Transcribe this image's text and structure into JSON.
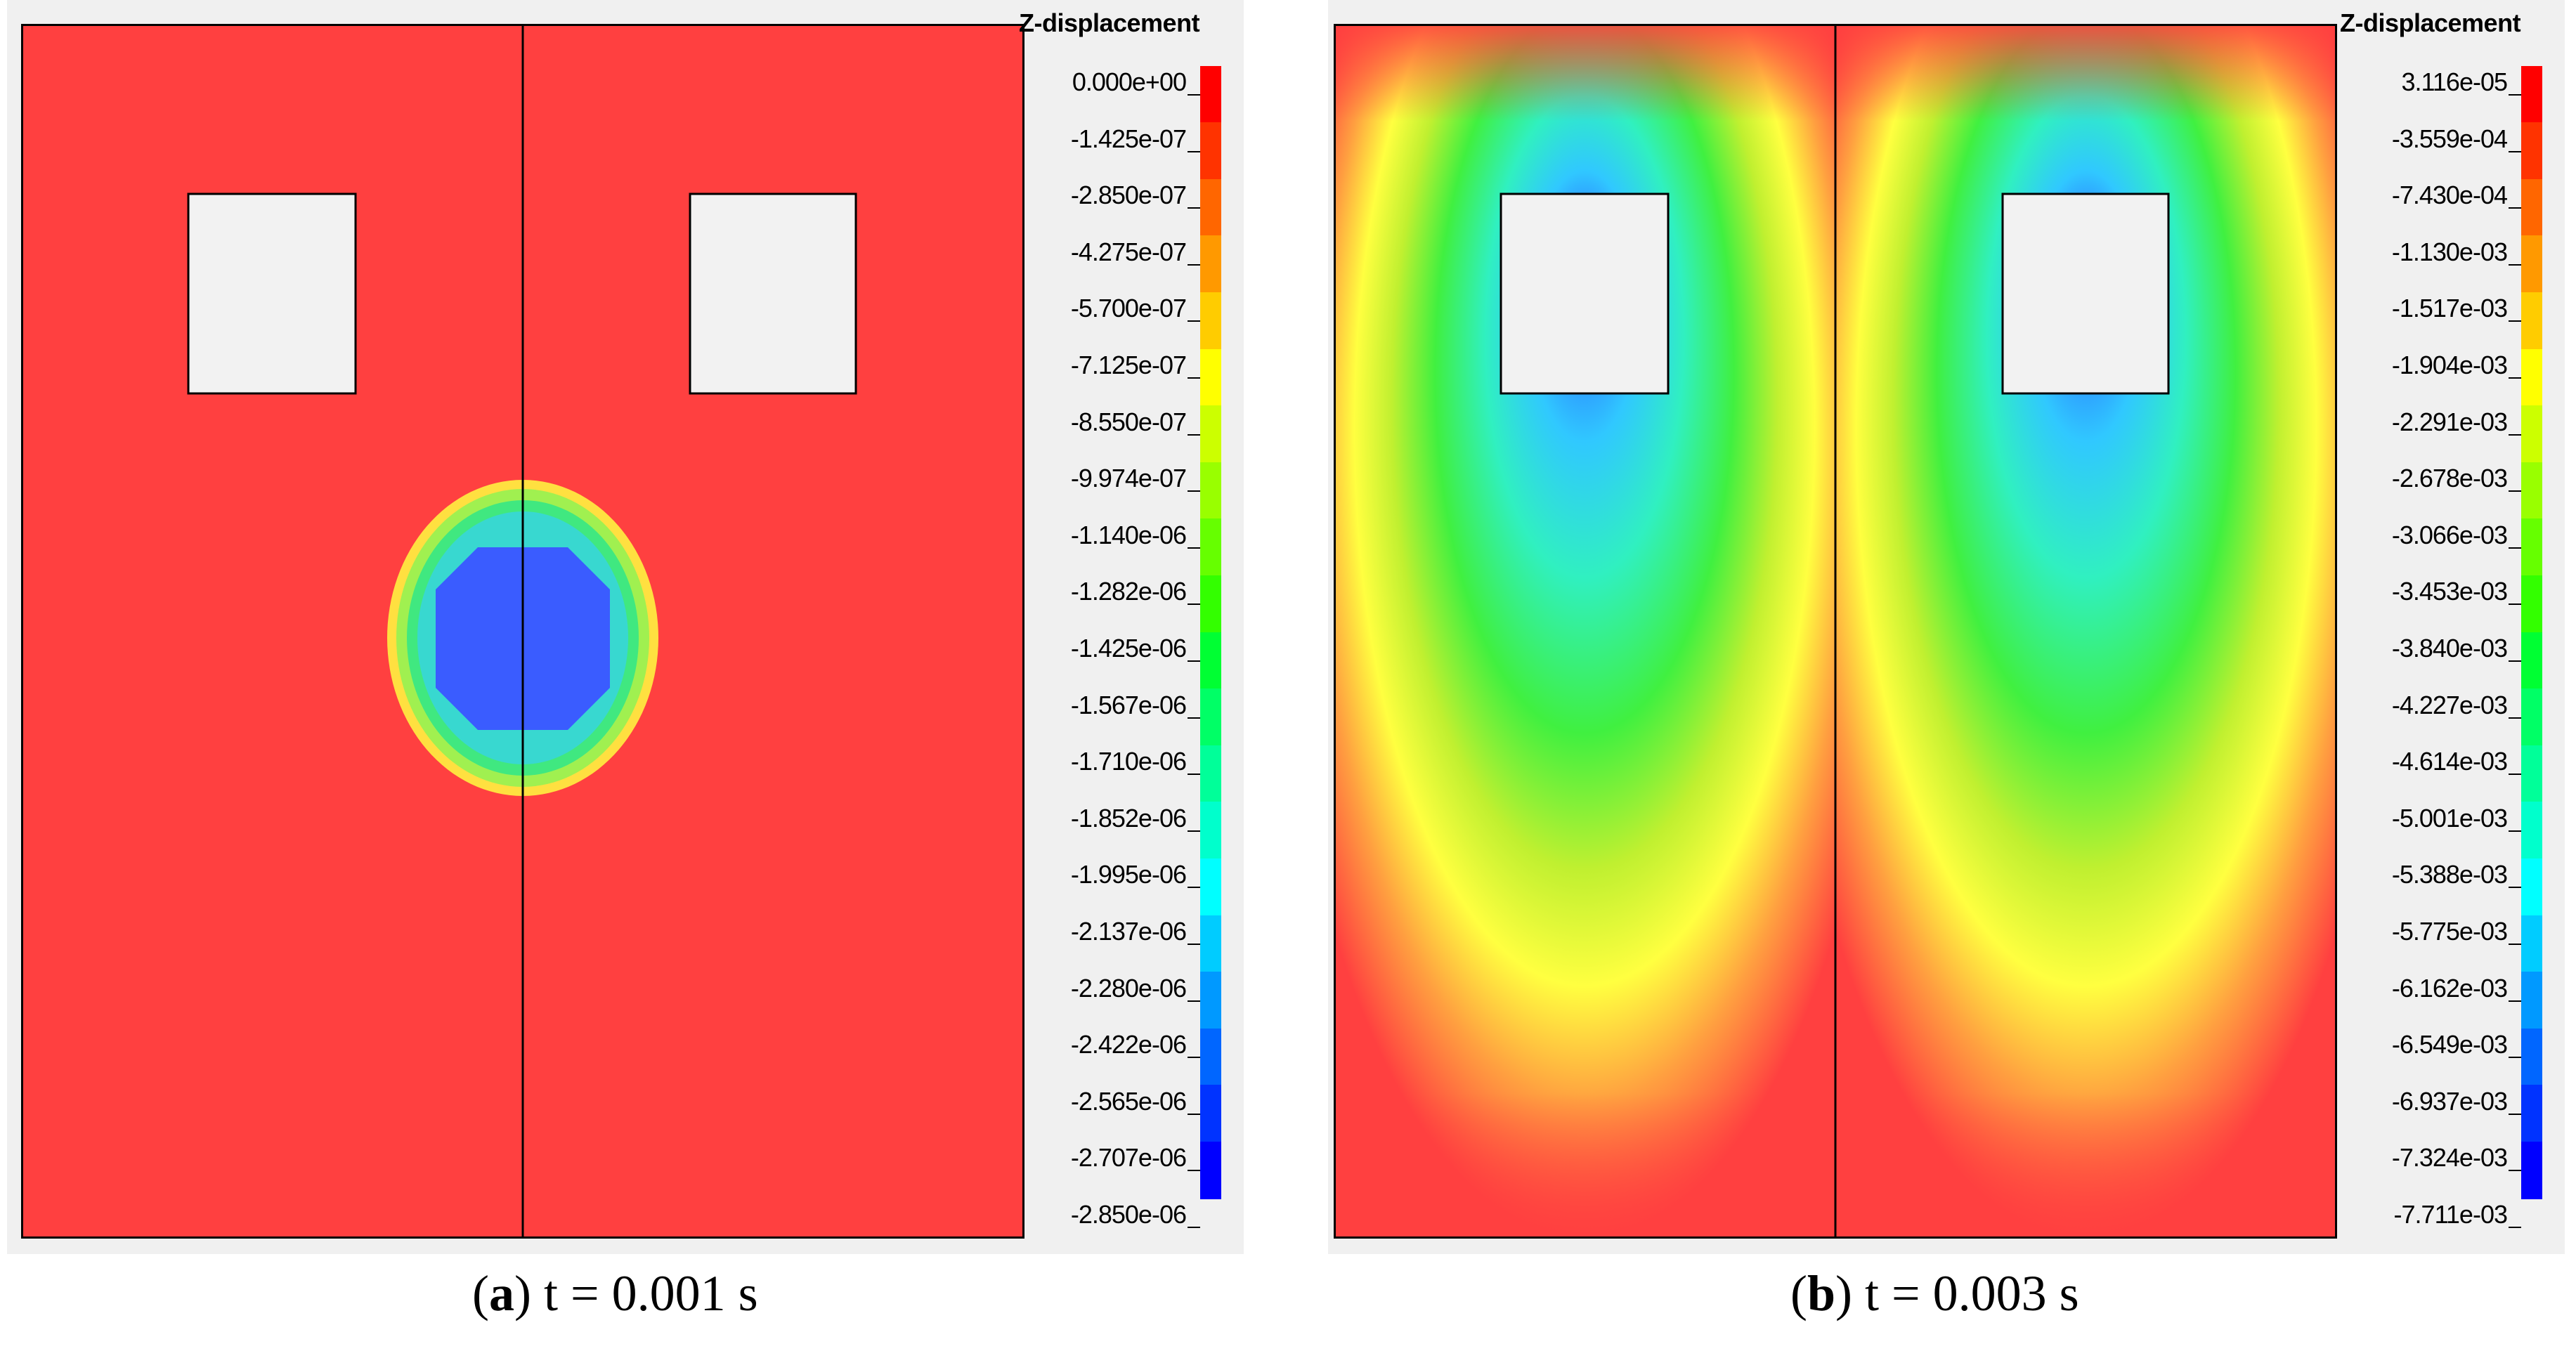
{
  "panels": [
    {
      "id": "a",
      "legend_title": "Z-displacement",
      "legend_values": [
        "0.000e+00",
        "-1.425e-07",
        "-2.850e-07",
        "-4.275e-07",
        "-5.700e-07",
        "-7.125e-07",
        "-8.550e-07",
        "-9.974e-07",
        "-1.140e-06",
        "-1.282e-06",
        "-1.425e-06",
        "-1.567e-06",
        "-1.710e-06",
        "-1.852e-06",
        "-1.995e-06",
        "-2.137e-06",
        "-2.280e-06",
        "-2.422e-06",
        "-2.565e-06",
        "-2.707e-06",
        "-2.850e-06"
      ],
      "caption_letter": "a",
      "caption_open": "(",
      "caption_close": ")",
      "caption_text": " t = 0.001 s"
    },
    {
      "id": "b",
      "legend_title": "Z-displacement",
      "legend_values": [
        "3.116e-05",
        "-3.559e-04",
        "-7.430e-04",
        "-1.130e-03",
        "-1.517e-03",
        "-1.904e-03",
        "-2.291e-03",
        "-2.678e-03",
        "-3.066e-03",
        "-3.453e-03",
        "-3.840e-03",
        "-4.227e-03",
        "-4.614e-03",
        "-5.001e-03",
        "-5.388e-03",
        "-5.775e-03",
        "-6.162e-03",
        "-6.549e-03",
        "-6.937e-03",
        "-7.324e-03",
        "-7.711e-03"
      ],
      "caption_letter": "b",
      "caption_open": "(",
      "caption_close": ")",
      "caption_text": " t = 0.003 s"
    }
  ],
  "colormap": [
    "#ff0000",
    "#ff3300",
    "#ff6600",
    "#ff9900",
    "#ffcc00",
    "#ffff00",
    "#ccff00",
    "#99ff00",
    "#66ff00",
    "#33ff00",
    "#00ff33",
    "#00ff66",
    "#00ff99",
    "#00ffcc",
    "#00ffff",
    "#00ccff",
    "#0099ff",
    "#0066ff",
    "#0033ff",
    "#0000ff"
  ],
  "colors": {
    "field_red": "#ff4040",
    "window": "#f2f2f2",
    "blue": "#3a5cff",
    "cyan": "#30e8ff",
    "green": "#40f040",
    "yellow": "#ffff40",
    "orange": "#ffa040"
  }
}
